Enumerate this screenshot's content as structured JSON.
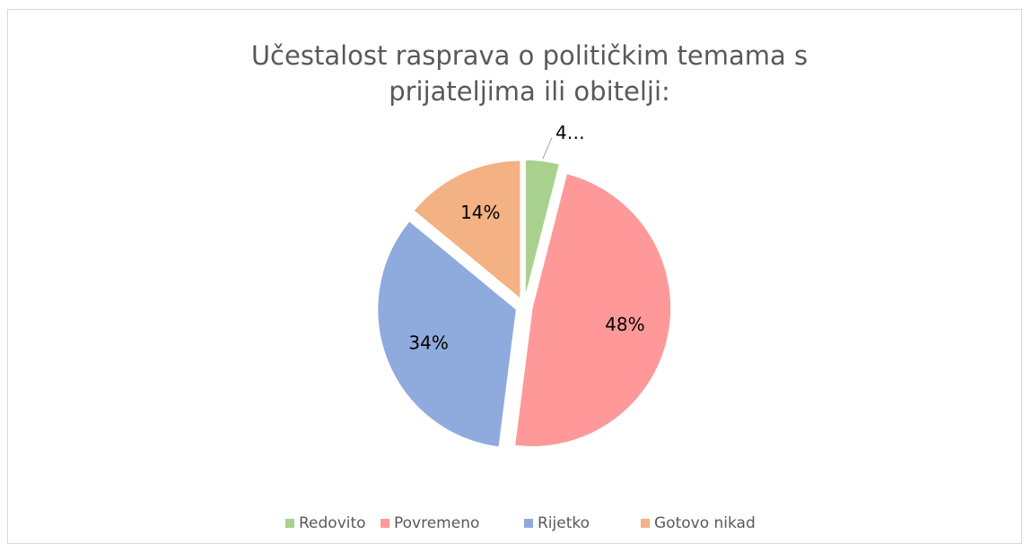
{
  "chart_data": {
    "type": "pie",
    "title": "Učestalost rasprava o političkim temama s prijateljima ili obitelji:",
    "categories": [
      "Redovito",
      "Povremeno",
      "Rijetko",
      "Gotovo nikad"
    ],
    "values": [
      4,
      48,
      34,
      14
    ],
    "value_labels": [
      "4…",
      "48%",
      "34%",
      "14%"
    ],
    "colors": [
      "#a9d18e",
      "#ff9999",
      "#8faadc",
      "#f4b183"
    ],
    "legend": "bottom"
  }
}
